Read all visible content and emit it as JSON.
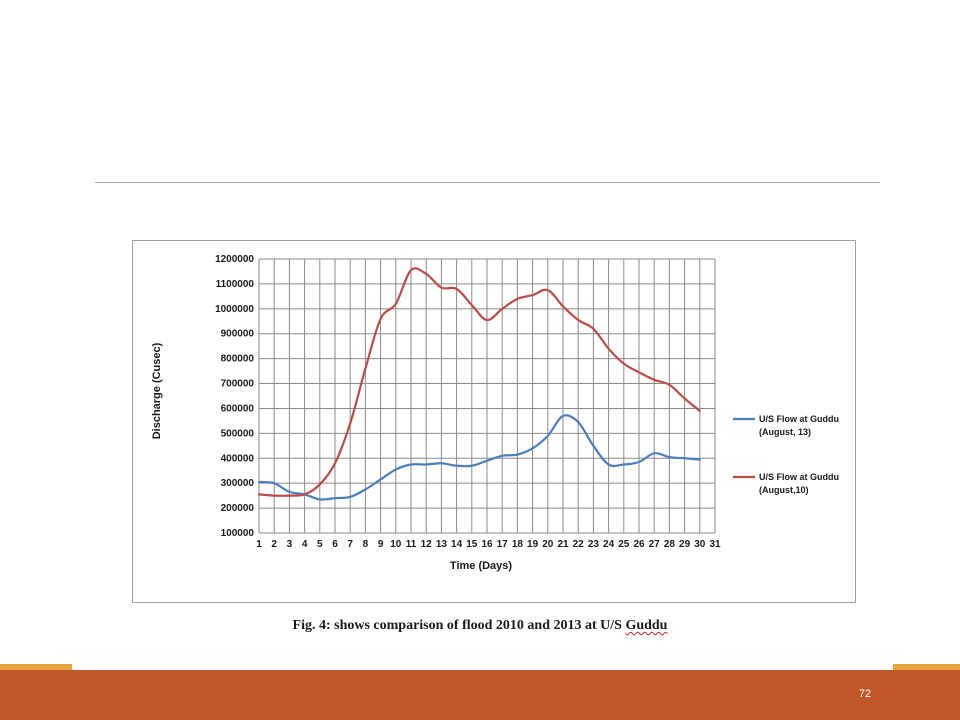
{
  "slide": {
    "page_number": "72",
    "caption": "Fig. 4: shows comparison of flood 2010 and 2013 at U/S ",
    "caption_tail": "Guddu",
    "colors": {
      "footer": "#c0582a",
      "accent": "#e8a341"
    }
  },
  "chart_data": {
    "type": "line",
    "title": "",
    "xlabel": "Time (Days)",
    "ylabel": "Discharge (Cusec)",
    "x_ticks": [
      "1",
      "2",
      "3",
      "4",
      "5",
      "6",
      "7",
      "8",
      "9",
      "10",
      "11",
      "12",
      "13",
      "14",
      "15",
      "16",
      "17",
      "18",
      "19",
      "20",
      "21",
      "22",
      "23",
      "24",
      "25",
      "26",
      "27",
      "28",
      "29",
      "30",
      "31"
    ],
    "y_ticks": [
      "1200000",
      "1100000",
      "1000000",
      "900000",
      "800000",
      "700000",
      "600000",
      "500000",
      "400000",
      "300000",
      "200000",
      "100000"
    ],
    "ylim": [
      100000,
      1200000
    ],
    "xlim": [
      1,
      31
    ],
    "grid": true,
    "legend_position": "right",
    "series": [
      {
        "name": "U/S Flow at Guddu (August, 13)",
        "legend_lines": [
          "U/S Flow at Guddu",
          "(August, 13)"
        ],
        "color": "#4a7ebf",
        "x": [
          1,
          2,
          3,
          4,
          5,
          6,
          7,
          8,
          9,
          10,
          11,
          12,
          13,
          14,
          15,
          16,
          17,
          18,
          19,
          20,
          21,
          22,
          23,
          24,
          25,
          26,
          27,
          28,
          29,
          30
        ],
        "values": [
          305000,
          300000,
          265000,
          255000,
          235000,
          240000,
          245000,
          275000,
          315000,
          355000,
          375000,
          375000,
          380000,
          370000,
          370000,
          390000,
          410000,
          415000,
          440000,
          490000,
          570000,
          545000,
          450000,
          375000,
          375000,
          385000,
          420000,
          405000,
          400000,
          395000
        ]
      },
      {
        "name": "U/S Flow at Guddu (August,10)",
        "legend_lines": [
          "U/S Flow at Guddu",
          "(August,10)"
        ],
        "color": "#be4b48",
        "x": [
          1,
          2,
          3,
          4,
          5,
          6,
          7,
          8,
          9,
          10,
          11,
          12,
          13,
          14,
          15,
          16,
          17,
          18,
          19,
          20,
          21,
          22,
          23,
          24,
          25,
          26,
          27,
          28,
          29,
          30
        ],
        "values": [
          255000,
          250000,
          250000,
          255000,
          295000,
          380000,
          540000,
          760000,
          960000,
          1020000,
          1155000,
          1140000,
          1085000,
          1080000,
          1015000,
          955000,
          1000000,
          1040000,
          1055000,
          1075000,
          1010000,
          955000,
          920000,
          840000,
          780000,
          745000,
          715000,
          695000,
          640000,
          590000
        ]
      }
    ]
  }
}
